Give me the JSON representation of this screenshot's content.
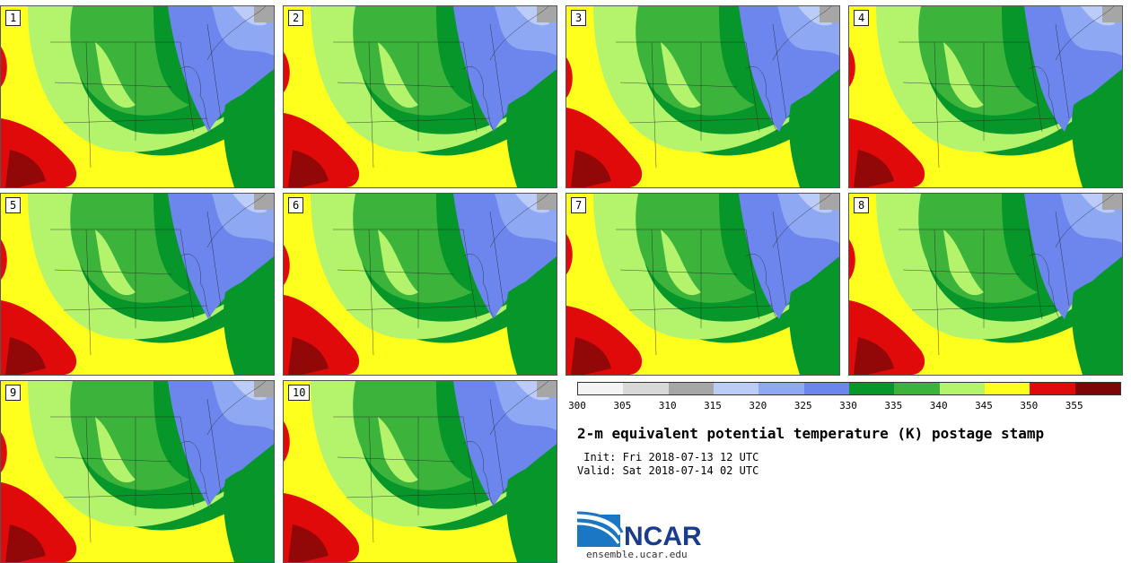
{
  "panels": [
    "1",
    "2",
    "3",
    "4",
    "5",
    "6",
    "7",
    "8",
    "9",
    "10"
  ],
  "colorbar": {
    "colors": [
      "#f4f4f4",
      "#d8d8d8",
      "#a6a6a6",
      "#bcccf8",
      "#8ea8f4",
      "#6c86ee",
      "#07962a",
      "#3cb43c",
      "#b4f46c",
      "#ffff1e",
      "#e00a0a",
      "#7e0606"
    ],
    "labels": [
      "300",
      "305",
      "310",
      "315",
      "320",
      "325",
      "330",
      "335",
      "340",
      "345",
      "350",
      "355"
    ]
  },
  "title": "2-m equivalent potential temperature (K) postage stamp",
  "init": " Init: Fri 2018-07-13 12 UTC",
  "valid": "Valid: Sat 2018-07-14 02 UTC",
  "logo_text": "NCAR",
  "website": "ensemble.ucar.edu",
  "map_colors": {
    "blue_light": "#bcccf8",
    "blue_mid": "#8ea8f4",
    "blue_dark": "#6c86ee",
    "green_dark": "#07962a",
    "green_mid": "#3cb43c",
    "green_light": "#b4f46c",
    "yellow": "#ffff1e",
    "red": "#e00a0a",
    "dark_red": "#7e0606",
    "gray": "#a6a6a6"
  }
}
